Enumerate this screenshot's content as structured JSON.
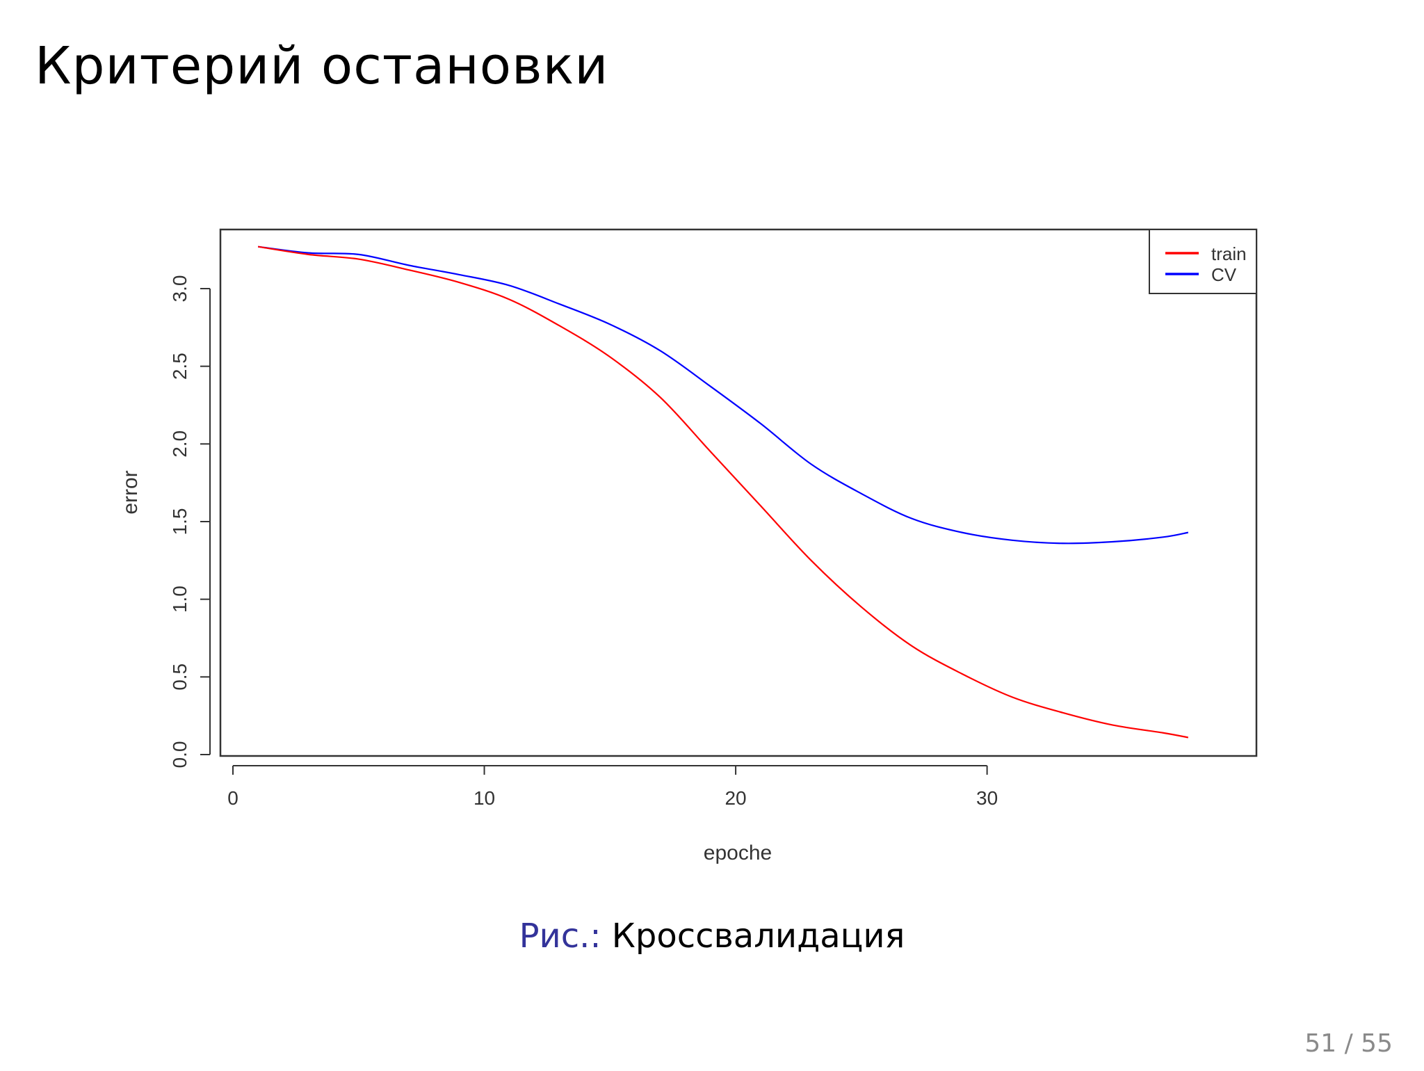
{
  "slide": {
    "title": "Критерий остановки",
    "caption_label": "Рис.:",
    "caption_text": "Кроссвалидация",
    "page_number": "51 / 55"
  },
  "chart_data": {
    "type": "line",
    "title": "",
    "xlabel": "epoche",
    "ylabel": "error",
    "xlim": [
      0,
      39
    ],
    "ylim": [
      0.0,
      3.3
    ],
    "xticks": [
      0,
      10,
      20,
      30
    ],
    "xtick_labels": [
      "0",
      "10",
      "20",
      "30"
    ],
    "yticks": [
      0.0,
      0.5,
      1.0,
      1.5,
      2.0,
      2.5,
      3.0
    ],
    "ytick_labels": [
      "0.0",
      "0.5",
      "1.0",
      "1.5",
      "2.0",
      "2.5",
      "3.0"
    ],
    "grid": false,
    "legend_position": "top-right",
    "x": [
      1,
      3,
      5,
      7,
      9,
      11,
      13,
      15,
      17,
      19,
      21,
      23,
      25,
      27,
      29,
      31,
      33,
      35,
      37,
      38
    ],
    "series": [
      {
        "name": "train",
        "color": "#ff0000",
        "values": [
          3.27,
          3.22,
          3.19,
          3.12,
          3.04,
          2.93,
          2.76,
          2.56,
          2.3,
          1.95,
          1.6,
          1.25,
          0.95,
          0.7,
          0.52,
          0.37,
          0.27,
          0.19,
          0.14,
          0.11
        ]
      },
      {
        "name": "CV",
        "color": "#0000ff",
        "values": [
          3.27,
          3.23,
          3.22,
          3.15,
          3.09,
          3.02,
          2.9,
          2.77,
          2.6,
          2.37,
          2.13,
          1.87,
          1.68,
          1.52,
          1.43,
          1.38,
          1.36,
          1.37,
          1.4,
          1.43
        ]
      }
    ]
  }
}
